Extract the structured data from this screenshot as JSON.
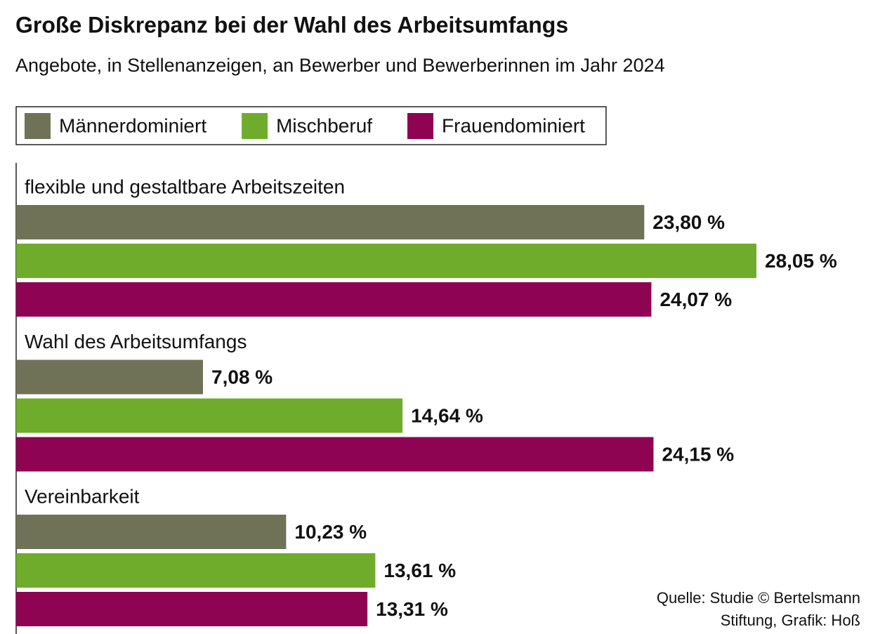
{
  "chart_data": {
    "type": "bar",
    "orientation": "horizontal",
    "title": "Große Diskrepanz bei der Wahl des Arbeitsumfangs",
    "subtitle": "Angebote, in Stellenanzeigen, an Bewerber und Bewerberinnen im Jahr 2024",
    "categories": [
      "flexible und gestaltbare Arbeitszeiten",
      "Wahl des Arbeitsumfangs",
      "Vereinbarkeit"
    ],
    "series": [
      {
        "name": "Männerdominiert",
        "color": "#6f7257",
        "values": [
          23.8,
          7.08,
          10.23
        ],
        "value_labels": [
          "23,80 %",
          "7,08 %",
          "10,23 %"
        ]
      },
      {
        "name": "Mischberuf",
        "color": "#6fac2b",
        "values": [
          28.05,
          14.64,
          13.61
        ],
        "value_labels": [
          "28,05 %",
          "14,64 %",
          "13,61 %"
        ]
      },
      {
        "name": "Frauendominiert",
        "color": "#8e0352",
        "values": [
          24.07,
          24.15,
          13.31
        ],
        "value_labels": [
          "24,07 %",
          "24,15 %",
          "13,31 %"
        ]
      }
    ],
    "source": [
      "Quelle: Studie © Bertelsmann",
      "Stiftung, Grafik: Hoß"
    ]
  }
}
